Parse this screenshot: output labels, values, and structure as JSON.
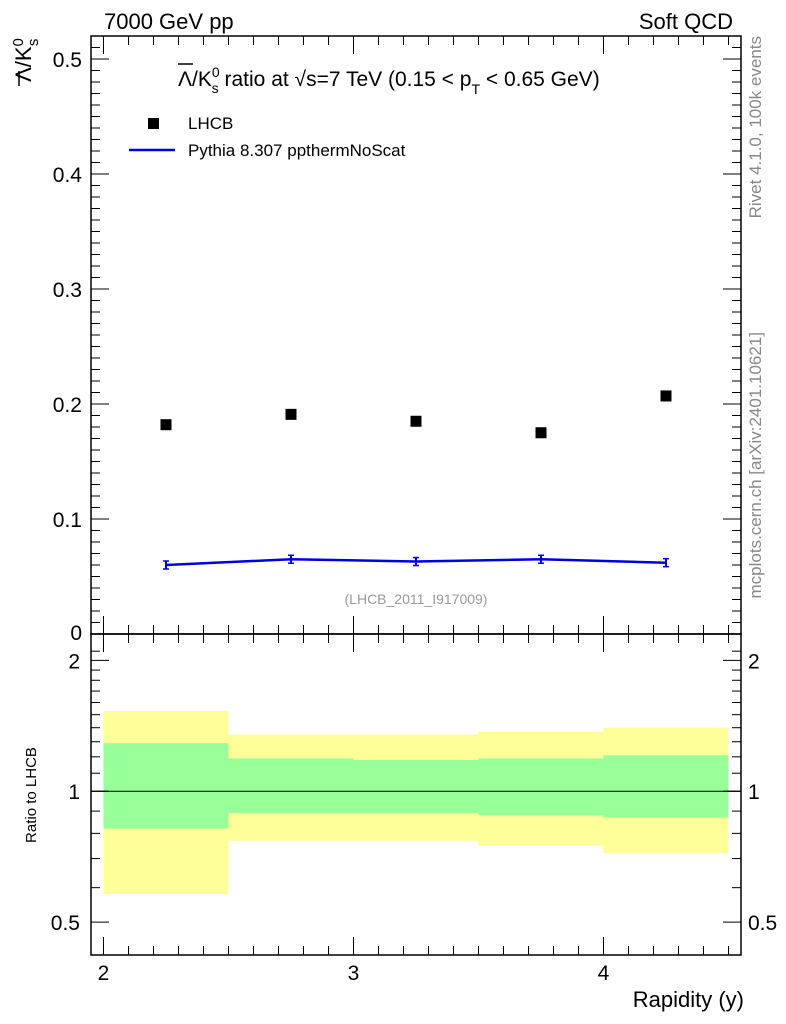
{
  "header": {
    "left": "7000 GeV pp",
    "right": "Soft QCD"
  },
  "side": {
    "rivet": "Rivet 4.1.0,  100k events",
    "mcplots": "mcplots.cern.ch [arXiv:2401.10621]"
  },
  "colors": {
    "data": "#000000",
    "mc": "#0000dd",
    "band_outer": "#ffff99",
    "band_inner": "#99ff99"
  },
  "chart_data": {
    "type": "scatter",
    "title": {
      "lead": "Λ/K",
      "sup": "0",
      "sub": "s",
      "mid": " ratio at √s=7 TeV (0.15 < p",
      "sub2": "T",
      "tail": " < 0.65 GeV)"
    },
    "ylabel": {
      "main": "Λ/K",
      "sup": "0",
      "sub": "s"
    },
    "xlabel": "Rapidity (y)",
    "analysis_id": "(LHCB_2011_I917009)",
    "xlim": [
      1.95,
      4.55
    ],
    "ylim": [
      0,
      0.52
    ],
    "yticks": [
      {
        "v": 0.1,
        "label": "0.1"
      },
      {
        "v": 0.2,
        "label": "0.2"
      },
      {
        "v": 0.3,
        "label": "0.3"
      },
      {
        "v": 0.4,
        "label": "0.4"
      },
      {
        "v": 0.5,
        "label": "0.5"
      }
    ],
    "y_zero_label": "0",
    "bins": [
      {
        "lo": 2.0,
        "hi": 2.5,
        "x": 2.25
      },
      {
        "lo": 2.5,
        "hi": 3.0,
        "x": 2.75
      },
      {
        "lo": 3.0,
        "hi": 3.5,
        "x": 3.25
      },
      {
        "lo": 3.5,
        "hi": 4.0,
        "x": 3.75
      },
      {
        "lo": 4.0,
        "hi": 4.5,
        "x": 4.25
      }
    ],
    "series": [
      {
        "name": "LHCB",
        "kind": "points",
        "values": [
          0.182,
          0.191,
          0.185,
          0.175,
          0.207
        ]
      },
      {
        "name": "Pythia 8.307 ppthermNoScat",
        "kind": "line",
        "values": [
          0.06,
          0.065,
          0.063,
          0.065,
          0.062
        ]
      }
    ],
    "ratio": {
      "ylabel": "Ratio to LHCB",
      "ylim": [
        0.42,
        2.3
      ],
      "yticks": [
        {
          "v": 0.5,
          "label": "0.5"
        },
        {
          "v": 1,
          "label": "1"
        },
        {
          "v": 2,
          "label": "2"
        }
      ],
      "xticks": [
        {
          "v": 2,
          "label": "2"
        },
        {
          "v": 3,
          "label": "3"
        },
        {
          "v": 4,
          "label": "4"
        }
      ],
      "band_outer": [
        [
          0.58,
          1.53
        ],
        [
          0.77,
          1.35
        ],
        [
          0.77,
          1.35
        ],
        [
          0.75,
          1.37
        ],
        [
          0.72,
          1.4
        ]
      ],
      "band_inner": [
        [
          0.82,
          1.29
        ],
        [
          0.89,
          1.19
        ],
        [
          0.89,
          1.18
        ],
        [
          0.88,
          1.19
        ],
        [
          0.87,
          1.21
        ]
      ]
    }
  }
}
